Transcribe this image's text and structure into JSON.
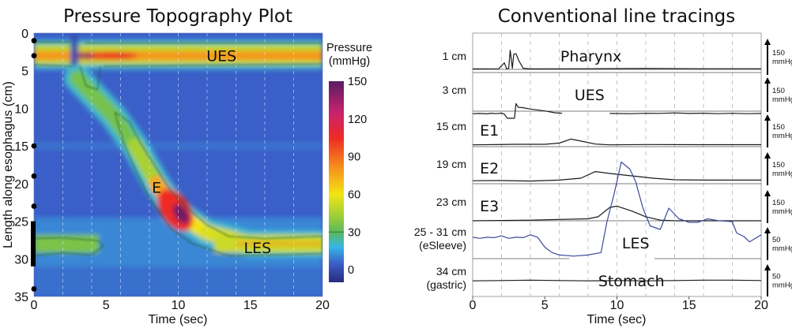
{
  "chart_data": [
    {
      "type": "heatmap",
      "title": "Pressure Topography Plot",
      "xlabel": "Time (sec)",
      "ylabel": "Length along esophagus (cm)",
      "xlim": [
        0,
        20
      ],
      "ylim": [
        35,
        0
      ],
      "xticks": [
        "0",
        "5",
        "10",
        "15",
        "20"
      ],
      "yticks": [
        "0",
        "5",
        "10",
        "15",
        "20",
        "25",
        "30",
        "35"
      ],
      "colorbar": {
        "label_line1": "Pressure",
        "label_line2": "(mmHg)",
        "ticks": [
          "150",
          "120",
          "90",
          "60",
          "30",
          "0"
        ],
        "range": [
          -10,
          150
        ],
        "isobar": 30,
        "stops": [
          {
            "v": -10,
            "c": "#2a2a7e"
          },
          {
            "v": 5,
            "c": "#3b5fc8"
          },
          {
            "v": 18,
            "c": "#35b6e6"
          },
          {
            "v": 30,
            "c": "#5cba5a"
          },
          {
            "v": 45,
            "c": "#a9d133"
          },
          {
            "v": 60,
            "c": "#f2e515"
          },
          {
            "v": 80,
            "c": "#f7941d"
          },
          {
            "v": 105,
            "c": "#ee2a24"
          },
          {
            "v": 125,
            "c": "#c8236d"
          },
          {
            "v": 150,
            "c": "#5a1b63"
          }
        ]
      },
      "sensor_positions_cm": [
        1,
        3,
        15,
        19,
        23,
        34
      ],
      "sleeve_range_cm": [
        25,
        31
      ],
      "annotations": [
        {
          "text": "UES",
          "t": 13,
          "cm": 3
        },
        {
          "text": "E",
          "t": 8.5,
          "cm": 20.5
        },
        {
          "text": "LES",
          "t": 15.5,
          "cm": 28.5
        }
      ],
      "features": {
        "ues_band_cm": [
          1.5,
          4.2
        ],
        "ues_peak_mmHg": 80,
        "swallow_time_sec": 2.8,
        "peristaltic_wave": [
          {
            "t": 3.0,
            "cm": 6,
            "p": 55
          },
          {
            "t": 5.5,
            "cm": 11,
            "p": 35
          },
          {
            "t": 7.0,
            "cm": 15,
            "p": 45
          },
          {
            "t": 8.5,
            "cm": 20,
            "p": 75
          },
          {
            "t": 10.0,
            "cm": 24,
            "p": 140
          },
          {
            "t": 12.0,
            "cm": 26.5,
            "p": 60
          },
          {
            "t": 15.0,
            "cm": 28,
            "p": 55
          },
          {
            "t": 20.0,
            "cm": 28,
            "p": 45
          }
        ],
        "les_band_cm": [
          26.8,
          29.2
        ]
      }
    },
    {
      "type": "line",
      "title": "Conventional line tracings",
      "xlabel": "Time (sec)",
      "xlim": [
        0,
        20
      ],
      "xticks": [
        "0",
        "5",
        "10",
        "15",
        "20"
      ],
      "rows": [
        {
          "label": "1 cm",
          "label2": "",
          "region": "Pharynx",
          "scale_value": "150",
          "scale_unit": "mmHg"
        },
        {
          "label": "3 cm",
          "label2": "",
          "region": "UES",
          "scale_value": "150",
          "scale_unit": "mmHg"
        },
        {
          "label": "15 cm",
          "label2": "",
          "region": "E1",
          "scale_value": "150",
          "scale_unit": "mmHg"
        },
        {
          "label": "19 cm",
          "label2": "",
          "region": "E2",
          "scale_value": "150",
          "scale_unit": "mmHg"
        },
        {
          "label": "23 cm",
          "label2": "",
          "region": "E3",
          "scale_value": "150",
          "scale_unit": "mmHg"
        },
        {
          "label": "25 - 31 cm",
          "label2": "(eSleeve)",
          "region": "LES",
          "scale_value": "50",
          "scale_unit": "mmHg"
        },
        {
          "label": "34 cm",
          "label2": "(gastric)",
          "region": "Stomach",
          "scale_value": "50",
          "scale_unit": "mmHg"
        }
      ],
      "series": [
        {
          "name": "1 cm",
          "color": "#1a1a1a",
          "t": [
            0,
            1.8,
            2.2,
            2.35,
            2.5,
            2.6,
            2.75,
            2.85,
            3.0,
            3.2,
            3.5,
            4,
            8,
            12,
            16,
            20
          ],
          "p": [
            2,
            3,
            30,
            3,
            5,
            88,
            5,
            70,
            72,
            40,
            5,
            2,
            3,
            4,
            3,
            3
          ]
        },
        {
          "name": "3 cm",
          "color": "#1a1a1a",
          "t": [
            0,
            0.5,
            1,
            1.3,
            1.6,
            2.0,
            2.2,
            2.4,
            2.9,
            3.0,
            3.15,
            3.5,
            4.0,
            5.0,
            5.7,
            6.2
          ],
          "p": [
            50,
            52,
            48,
            55,
            50,
            56,
            45,
            0,
            0,
            160,
            120,
            115,
            100,
            80,
            60,
            55
          ],
          "gap_after": 6.2,
          "t2": [
            9.5,
            11,
            12,
            13,
            14,
            15,
            16,
            17,
            18,
            19,
            20
          ],
          "p2": [
            52,
            50,
            54,
            53,
            58,
            52,
            55,
            50,
            54,
            50,
            52
          ]
        },
        {
          "name": "15 cm",
          "color": "#1a1a1a",
          "t": [
            0,
            3,
            5,
            6,
            6.8,
            7.5,
            8.5,
            9.5,
            12,
            16,
            20
          ],
          "p": [
            2,
            6,
            6,
            15,
            45,
            30,
            8,
            2,
            4,
            3,
            3
          ]
        },
        {
          "name": "19 cm",
          "color": "#1a1a1a",
          "t": [
            0,
            2,
            4,
            6,
            7.5,
            8.5,
            9.5,
            10.5,
            11.5,
            12.5,
            14,
            16,
            18,
            20
          ],
          "p": [
            4,
            5,
            2,
            8,
            20,
            62,
            50,
            40,
            30,
            20,
            10,
            8,
            8,
            8
          ]
        },
        {
          "name": "23 cm",
          "color": "#1a1a1a",
          "t": [
            0,
            4,
            8,
            8.7,
            9.5,
            10.0,
            11,
            12,
            13,
            14,
            16,
            20
          ],
          "p": [
            0,
            5,
            15,
            30,
            100,
            110,
            75,
            30,
            5,
            0,
            0,
            0
          ]
        },
        {
          "name": "25 - 31 cm (eSleeve)",
          "color": "#3d4a9c",
          "t": [
            0,
            0.5,
            1,
            1.5,
            2,
            2.5,
            3,
            3.5,
            4,
            4.5,
            5,
            5.5,
            6,
            7,
            8,
            8.9,
            9.3,
            9.8,
            10.3,
            10.9,
            11.3,
            11.8,
            12.3,
            13.0,
            13.6,
            14.3,
            15.0,
            15.6,
            16.3,
            17.0,
            18.0,
            18.3,
            18.8,
            19.2,
            20
          ],
          "p": [
            -2,
            -5,
            -2,
            -3,
            2,
            -5,
            -2,
            -3,
            5,
            -2,
            -30,
            -45,
            -52,
            -55,
            -52,
            -45,
            40,
            120,
            210,
            190,
            155,
            80,
            30,
            20,
            80,
            50,
            40,
            40,
            50,
            45,
            42,
            10,
            0,
            -15,
            5
          ]
        },
        {
          "name": "34 cm (gastric)",
          "color": "#1a1a1a",
          "t": [
            0,
            2,
            4,
            6,
            8,
            10,
            12,
            14,
            16,
            18,
            20
          ],
          "p": [
            2,
            2.5,
            3,
            2.5,
            2,
            2.5,
            2,
            2.5,
            3,
            3,
            2.5
          ]
        }
      ]
    }
  ]
}
